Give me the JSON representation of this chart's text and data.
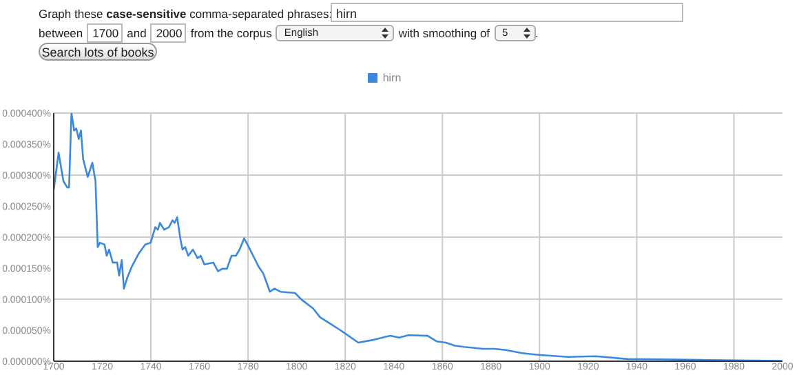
{
  "chart_data": {
    "type": "line",
    "annotations": [
      "Graph these ",
      "case-sensitive",
      " comma-separated phrases:",
      "hirn",
      "between",
      "1700",
      "and",
      "2000",
      "from the corpus",
      "English",
      "with smoothing of",
      "5",
      ".",
      "Search lots of books"
    ],
    "x": [
      1700,
      1702,
      1704,
      1705.6,
      1706.3,
      1707.3,
      1708.4,
      1709.3,
      1710.3,
      1711.2,
      1712.1,
      1714,
      1715.9,
      1717.2,
      1718.1,
      1719,
      1720.9,
      1721.8,
      1722.8,
      1724.3,
      1726.1,
      1726.9,
      1728,
      1728.9,
      1730.2,
      1732.1,
      1734.9,
      1737.7,
      1739.9,
      1741.8,
      1742.9,
      1743.7,
      1745.5,
      1747.4,
      1748.9,
      1749.8,
      1750.8,
      1752.1,
      1753,
      1754.1,
      1755.4,
      1757.3,
      1759.2,
      1760.5,
      1762,
      1765.7,
      1767.6,
      1769.4,
      1771.3,
      1773.2,
      1775,
      1776.5,
      1778.4,
      1780.3,
      1782.1,
      1784.4,
      1786.2,
      1789,
      1790.9,
      1793.3,
      1799.3,
      1802.1,
      1806.8,
      1809.6,
      1812.4,
      1818,
      1825.4,
      1831,
      1838.5,
      1842.2,
      1846,
      1853.9,
      1857.6,
      1861.4,
      1865.2,
      1869,
      1876.6,
      1881.4,
      1886.1,
      1892.8,
      1900.3,
      1911.7,
      1923.1,
      1936.4,
      1949.7,
      1968.7,
      1987.6,
      2000
    ],
    "series": [
      {
        "name": "hirn",
        "color": "#3b88e0",
        "values": [
          0.000276,
          0.000336,
          0.00029,
          0.00028,
          0.00028,
          0.0004,
          0.000372,
          0.000375,
          0.000358,
          0.000372,
          0.000326,
          0.000297,
          0.00032,
          0.00029,
          0.000184,
          0.000191,
          0.000188,
          0.00017,
          0.00018,
          0.000159,
          0.000159,
          0.000138,
          0.000163,
          0.000117,
          0.000134,
          0.000152,
          0.000173,
          0.000188,
          0.000191,
          0.000216,
          0.000212,
          0.000223,
          0.000212,
          0.000216,
          0.000227,
          0.000223,
          0.000232,
          0.000198,
          0.00018,
          0.000184,
          0.00017,
          0.00018,
          0.000166,
          0.00017,
          0.000156,
          0.000159,
          0.000145,
          0.000149,
          0.000149,
          0.00017,
          0.00017,
          0.00018,
          0.000198,
          0.000184,
          0.00017,
          0.000152,
          0.000142,
          0.000112,
          0.000117,
          0.000112,
          0.00011,
          9.9e-05,
          8.5e-05,
          7.1e-05,
          6.4e-05,
          5e-05,
          3e-05,
          3.4e-05,
          4.1e-05,
          3.8e-05,
          4.2e-05,
          4.1e-05,
          3.2e-05,
          3e-05,
          2.5e-05,
          2.3e-05,
          2e-05,
          2e-05,
          1.8e-05,
          1.3e-05,
          1e-05,
          7e-06,
          8e-06,
          3.5e-06,
          3e-06,
          2e-06,
          1e-06,
          5e-07
        ]
      }
    ],
    "xlim": [
      1700,
      2000
    ],
    "xticks": [
      1700,
      1720,
      1740,
      1760,
      1780,
      1800,
      1820,
      1840,
      1860,
      1880,
      1900,
      1920,
      1940,
      1960,
      1980,
      2000
    ],
    "ylim": [
      0,
      0.0004
    ],
    "yticks": [
      {
        "value": 0,
        "label": "0.000000%"
      },
      {
        "value": 5e-05,
        "label": "0.000050%"
      },
      {
        "value": 0.0001,
        "label": "0.000100%"
      },
      {
        "value": 0.00015,
        "label": "0.000150%"
      },
      {
        "value": 0.0002,
        "label": "0.000200%"
      },
      {
        "value": 0.00025,
        "label": "0.000250%"
      },
      {
        "value": 0.0003,
        "label": "0.000300%"
      },
      {
        "value": 0.00035,
        "label": "0.000350%"
      },
      {
        "value": 0.0004,
        "label": "0.000400%"
      }
    ],
    "grid": true,
    "legend": "top",
    "marker": "none",
    "line_style": "solid"
  }
}
